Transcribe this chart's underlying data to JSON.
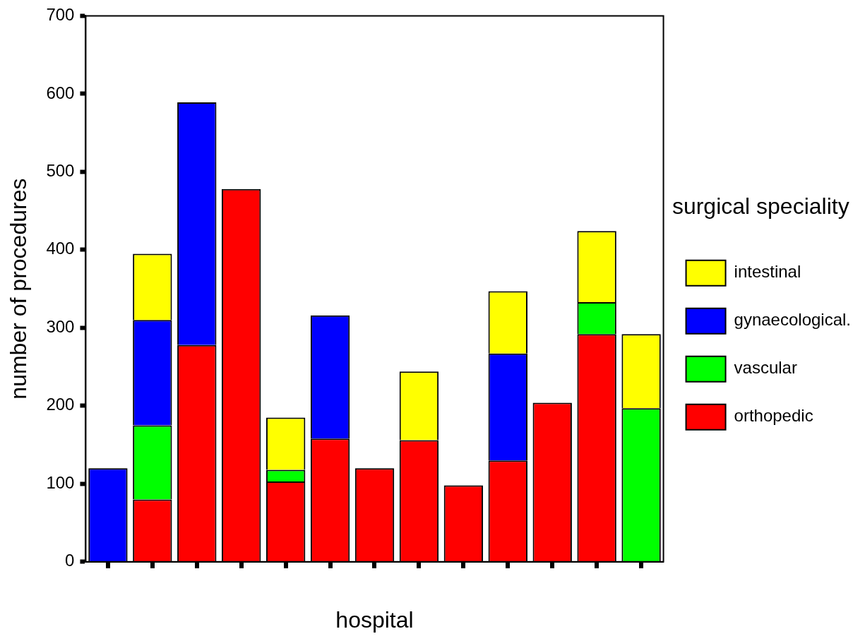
{
  "chart_data": {
    "type": "bar",
    "stacked": true,
    "xlabel": "hospital",
    "ylabel": "number of procedures",
    "legend_title": "surgical speciality",
    "legend": "right",
    "grid": false,
    "categories": [
      null,
      null,
      null,
      null,
      null,
      null,
      null,
      null,
      null,
      null,
      null,
      null,
      null
    ],
    "ylim": [
      0,
      700
    ],
    "yticks": [
      0,
      100,
      200,
      300,
      400,
      500,
      600,
      700
    ],
    "series": [
      {
        "name": "orthopedic",
        "color": "#ff0000",
        "values": [
          null,
          80,
          278,
          478,
          103,
          158,
          120,
          156,
          98,
          130,
          204,
          292,
          null
        ]
      },
      {
        "name": "vascular",
        "color": "#00ff00",
        "values": [
          null,
          95,
          null,
          null,
          15,
          null,
          null,
          null,
          null,
          null,
          null,
          41,
          197
        ]
      },
      {
        "name": "gynaecological.",
        "color": "#0000ff",
        "values": [
          120,
          135,
          311,
          null,
          null,
          158,
          null,
          null,
          null,
          137,
          null,
          null,
          null
        ]
      },
      {
        "name": "intestinal",
        "color": "#ffff00",
        "values": [
          null,
          85,
          null,
          null,
          67,
          null,
          null,
          88,
          null,
          80,
          null,
          91,
          95
        ]
      }
    ]
  }
}
